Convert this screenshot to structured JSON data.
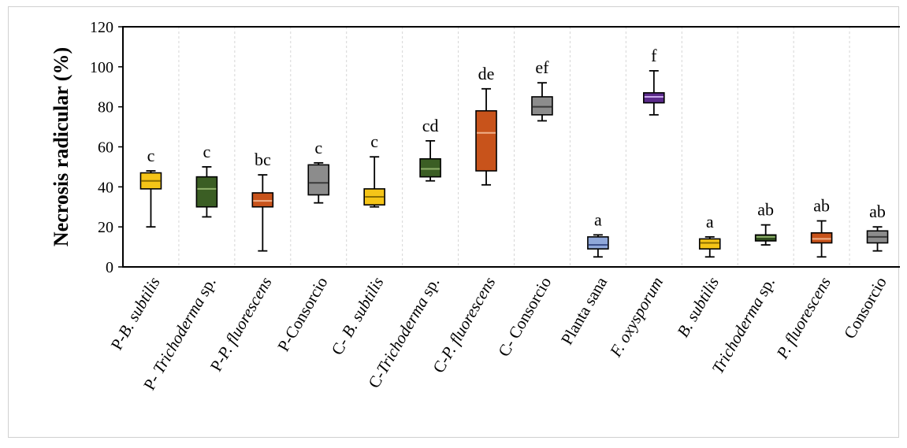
{
  "chart_data": {
    "type": "box",
    "title": "",
    "xlabel": "",
    "ylabel": "Necrosis radicular (%)",
    "ylim": [
      0,
      120
    ],
    "yticks": [
      "0",
      "20",
      "40",
      "60",
      "80",
      "100",
      "120"
    ],
    "grid": "vertical dashed category separators",
    "legend": "none",
    "categories": [
      {
        "parts": [
          {
            "t": "P-",
            "i": false
          },
          {
            "t": "B. subtilis",
            "i": true
          }
        ],
        "letters": "c",
        "color": "#F5C518",
        "median_color": "#8a6d00",
        "min": 20,
        "q1": 39,
        "median": 43,
        "q3": 47,
        "max": 48
      },
      {
        "parts": [
          {
            "t": "P- ",
            "i": false
          },
          {
            "t": "Trichoderma",
            "i": true
          },
          {
            "t": " sp.",
            "i": false
          }
        ],
        "letters": "c",
        "color": "#3B5E24",
        "median_color": "#8fb06a",
        "min": 25,
        "q1": 30,
        "median": 39,
        "q3": 45,
        "max": 50
      },
      {
        "parts": [
          {
            "t": "P-",
            "i": false
          },
          {
            "t": "P. fluorescens",
            "i": true
          }
        ],
        "letters": "bc",
        "color": "#C8531B",
        "median_color": "#f0b08a",
        "min": 8,
        "q1": 30,
        "median": 33,
        "q3": 37,
        "max": 46
      },
      {
        "parts": [
          {
            "t": "P-Consorcio",
            "i": false
          }
        ],
        "letters": "c",
        "color": "#8C8C8C",
        "median_color": "#3a3a3a",
        "min": 32,
        "q1": 36,
        "median": 42,
        "q3": 51,
        "max": 52
      },
      {
        "parts": [
          {
            "t": "C- ",
            "i": false
          },
          {
            "t": "B. subtilis",
            "i": true
          }
        ],
        "letters": "c",
        "color": "#F5C518",
        "median_color": "#8a6d00",
        "min": 30,
        "q1": 31,
        "median": 35,
        "q3": 39,
        "max": 55
      },
      {
        "parts": [
          {
            "t": "C-",
            "i": false
          },
          {
            "t": "Trichoderma",
            "i": true
          },
          {
            "t": " sp.",
            "i": false
          }
        ],
        "letters": "cd",
        "color": "#3B5E24",
        "median_color": "#8fb06a",
        "min": 43,
        "q1": 45,
        "median": 49,
        "q3": 54,
        "max": 63
      },
      {
        "parts": [
          {
            "t": "C-",
            "i": false
          },
          {
            "t": "P. fluorescens",
            "i": true
          }
        ],
        "letters": "de",
        "color": "#C8531B",
        "median_color": "#f0b08a",
        "min": 41,
        "q1": 48,
        "median": 67,
        "q3": 78,
        "max": 89
      },
      {
        "parts": [
          {
            "t": "C- Consorcio",
            "i": false
          }
        ],
        "letters": "ef",
        "color": "#8C8C8C",
        "median_color": "#3a3a3a",
        "min": 73,
        "q1": 76,
        "median": 80,
        "q3": 85,
        "max": 92
      },
      {
        "parts": [
          {
            "t": "Planta sana",
            "i": false
          }
        ],
        "letters": "a",
        "color": "#8FA7D9",
        "median_color": "#3b4f8a",
        "min": 5,
        "q1": 9,
        "median": 11,
        "q3": 15,
        "max": 16
      },
      {
        "parts": [
          {
            "t": "F. oxysporum",
            "i": true
          }
        ],
        "letters": "f",
        "color": "#5B2A8A",
        "median_color": "#c9a8ec",
        "min": 76,
        "q1": 82,
        "median": 85,
        "q3": 87,
        "max": 98
      },
      {
        "parts": [
          {
            "t": "B. subtilis",
            "i": true
          }
        ],
        "letters": "a",
        "color": "#F5C518",
        "median_color": "#8a6d00",
        "min": 5,
        "q1": 9,
        "median": 12,
        "q3": 14,
        "max": 15
      },
      {
        "parts": [
          {
            "t": "Trichoderma",
            "i": true
          },
          {
            "t": " sp.",
            "i": false
          }
        ],
        "letters": "ab",
        "color": "#2E4A1C",
        "median_color": "#8fb06a",
        "min": 11,
        "q1": 13,
        "median": 15,
        "q3": 16,
        "max": 21
      },
      {
        "parts": [
          {
            "t": "P. fluorescens",
            "i": true
          }
        ],
        "letters": "ab",
        "color": "#C8531B",
        "median_color": "#f0b08a",
        "min": 5,
        "q1": 12,
        "median": 14,
        "q3": 17,
        "max": 23
      },
      {
        "parts": [
          {
            "t": "Consorcio",
            "i": false
          }
        ],
        "letters": "ab",
        "color": "#8C8C8C",
        "median_color": "#3a3a3a",
        "min": 8,
        "q1": 12,
        "median": 15,
        "q3": 18,
        "max": 20
      }
    ]
  }
}
